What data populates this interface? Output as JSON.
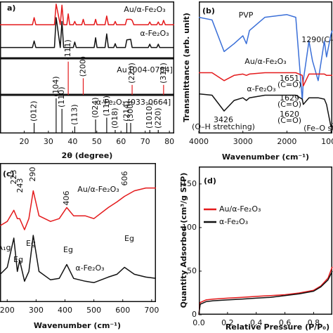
{
  "chart_data": [
    {
      "type": "line",
      "label": "a)",
      "x": [
        10,
        23.4,
        24.1,
        24.8,
        32.5,
        33.2,
        34.9,
        35.6,
        36.3,
        37.6,
        38.2,
        38.8,
        40.3,
        40.9,
        41.5,
        43.8,
        44.4,
        45.0,
        48.9,
        49.5,
        50.1,
        53.4,
        54.1,
        54.8,
        57.0,
        57.6,
        58.2,
        61.8,
        62.4,
        64.0,
        64.6,
        65.3,
        71.3,
        71.9,
        72.5,
        74.8,
        75.4,
        76.0,
        77.0,
        77.6,
        78.3,
        82
      ],
      "xlim": [
        10,
        82
      ],
      "ylim": [
        0,
        105
      ],
      "series": [
        {
          "name": "Au/α-Fe₂O₃",
          "color": "#e41a1c",
          "values": [
            62,
            62,
            75,
            62,
            62,
            100,
            62,
            98,
            62,
            62,
            82,
            62,
            62,
            68,
            62,
            62,
            72,
            62,
            62,
            72,
            62,
            62,
            78,
            62,
            62,
            68,
            62,
            62,
            72,
            72,
            70,
            62,
            62,
            67,
            62,
            62,
            67,
            62,
            62,
            70,
            62,
            62
          ]
        },
        {
          "name": "α-Fe₂O₃",
          "color": "#111111",
          "values": [
            20,
            20,
            32,
            20,
            20,
            75,
            20,
            68,
            20,
            20,
            20,
            20,
            20,
            30,
            20,
            20,
            20,
            20,
            20,
            38,
            20,
            20,
            45,
            20,
            20,
            27,
            20,
            20,
            34,
            35,
            20,
            20,
            20,
            26,
            20,
            20,
            26,
            20,
            20,
            20,
            20,
            20
          ]
        }
      ]
    },
    {
      "type": "stem",
      "x": [
        38.2,
        44.4,
        64.6,
        77.6
      ],
      "xlim": [
        10,
        82
      ],
      "ylim": [
        0,
        110
      ],
      "series": [
        {
          "name": "Au [004-0784]",
          "color": "#e41a1c",
          "values": [
            100,
            50,
            30,
            30
          ],
          "value_labels": [
            "(111)",
            "(200)",
            "(220)",
            "(311)"
          ]
        }
      ]
    },
    {
      "type": "stem",
      "x": [
        24.1,
        33.2,
        35.6,
        40.9,
        49.5,
        54.1,
        57.6,
        62.4,
        64.0,
        71.9,
        75.4
      ],
      "xlim": [
        10,
        82
      ],
      "ylim": [
        0,
        110
      ],
      "xticks": [
        20,
        30,
        40,
        50,
        60,
        70,
        80
      ],
      "xlabel": "2θ (degree)",
      "series": [
        {
          "name": "α-Fe₂O₃ [033-0664]",
          "color": "#111111",
          "values": [
            30,
            100,
            70,
            20,
            40,
            45,
            10,
            30,
            30,
            10,
            10
          ],
          "value_labels": [
            "(012)",
            "(104)",
            "(110)",
            "(113)",
            "(024)",
            "(116)",
            "(018)",
            "(214)",
            "(300)",
            "(1010)",
            "(220)"
          ]
        }
      ]
    },
    {
      "type": "line",
      "label": "(b)",
      "x": [
        4000,
        3700,
        3426,
        3200,
        3000,
        2920,
        2850,
        2500,
        2000,
        1800,
        1651,
        1629,
        1500,
        1420,
        1290,
        1150,
        1100,
        1000,
        970
      ],
      "xlim": [
        4000,
        970
      ],
      "ylim": [
        0,
        100
      ],
      "xticks": [
        4000,
        3000,
        2000,
        1000
      ],
      "xlabel": "Wavenumber (cm⁻¹)",
      "ylabel": "Transmittance (arb. unit)",
      "series": [
        {
          "name": "PVP",
          "color": "#3a6fd8",
          "values": [
            88,
            86,
            62,
            68,
            74,
            68,
            78,
            88,
            90,
            88,
            25,
            40,
            70,
            55,
            40,
            70,
            58,
            75,
            78
          ]
        },
        {
          "name": "Au/α-Fe₂O₃",
          "color": "#e41a1c",
          "values": [
            46,
            46,
            40,
            44,
            45,
            44,
            45,
            46,
            46,
            46,
            44,
            36,
            45,
            45,
            45,
            45,
            44,
            44,
            44
          ]
        },
        {
          "name": "α-Fe₂O₃",
          "color": "#111111",
          "values": [
            30,
            29,
            17,
            25,
            27,
            25,
            27,
            29,
            29,
            29,
            26,
            22,
            27,
            27,
            27,
            26,
            22,
            5,
            8
          ]
        }
      ],
      "annotations": [
        "3426",
        "(O–H stretching)",
        "1651",
        "(C=O)",
        "1629",
        "(C=O)",
        "1620",
        "(C=O)",
        "1290(C–",
        "(Fe–O stret"
      ]
    },
    {
      "type": "line",
      "label": "(c)",
      "x": [
        176,
        200,
        223,
        235,
        243,
        260,
        275,
        290,
        310,
        350,
        380,
        406,
        430,
        470,
        500,
        550,
        580,
        606,
        640,
        680,
        715
      ],
      "xlim": [
        175,
        715
      ],
      "ylim": [
        0,
        100
      ],
      "xticks": [
        200,
        300,
        400,
        500,
        600,
        700
      ],
      "xlabel": "Wavenumber (cm⁻¹)",
      "series": [
        {
          "name": "Au/α-Fe₂O₃",
          "color": "#e41a1c",
          "values": [
            55,
            58,
            66,
            60,
            60,
            52,
            60,
            80,
            62,
            58,
            60,
            68,
            62,
            62,
            60,
            68,
            72,
            76,
            80,
            82,
            82
          ]
        },
        {
          "name": "α-Fe₂O₃",
          "color": "#111111",
          "values": [
            20,
            25,
            46,
            22,
            30,
            15,
            22,
            48,
            22,
            16,
            17,
            27,
            17,
            15,
            14,
            18,
            20,
            25,
            20,
            18,
            17
          ]
        }
      ],
      "annotations": [
        "223",
        "243",
        "290",
        "406",
        "606",
        "A₁g",
        "Eg",
        "Eg",
        "Eg",
        "Eg"
      ]
    },
    {
      "type": "line",
      "label": "(d)",
      "x": [
        0,
        0.01,
        0.05,
        0.1,
        0.2,
        0.3,
        0.4,
        0.5,
        0.6,
        0.7,
        0.8,
        0.85,
        0.9,
        0.93
      ],
      "xlim": [
        0,
        0.93
      ],
      "ylim": [
        0,
        170
      ],
      "xticks": [
        {
          "value": 0,
          "label": "0.0"
        },
        0.2,
        0.4,
        0.6,
        0.8
      ],
      "yticks": [
        0,
        50,
        100,
        150
      ],
      "xlabel": "Relative Pressure (P/P₀)",
      "ylabel": "Quantity Adsorbed (cm³/g STP)",
      "legend": "upper left",
      "series": [
        {
          "name": "Au/α-Fe₂O₃",
          "color": "#e41a1c",
          "values": [
            0,
            14,
            17,
            18,
            19,
            20,
            21,
            22,
            23,
            25,
            28,
            33,
            42,
            55
          ]
        },
        {
          "name": "α-Fe₂O₃",
          "color": "#111111",
          "values": [
            0,
            12,
            15,
            16,
            17,
            18,
            19,
            20,
            22,
            24,
            27,
            32,
            40,
            50
          ]
        }
      ]
    }
  ]
}
